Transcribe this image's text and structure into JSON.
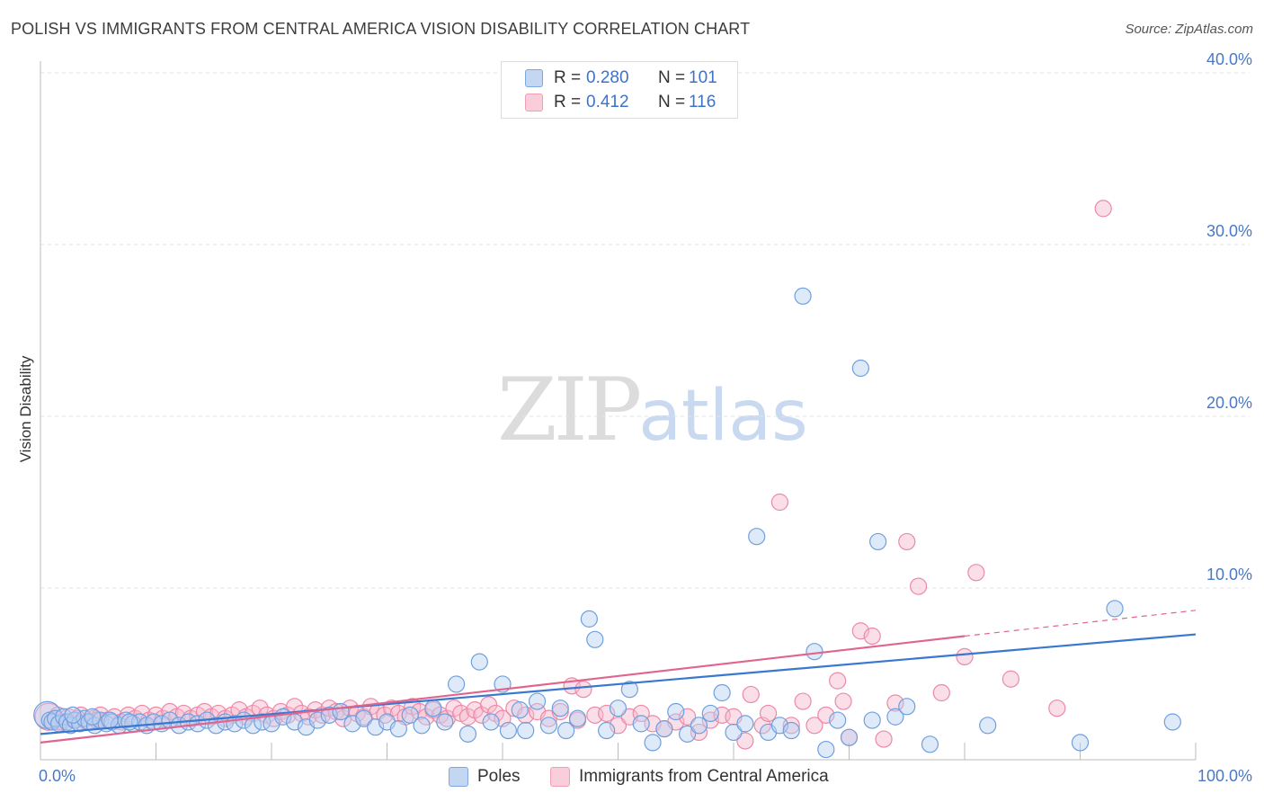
{
  "title": "POLISH VS IMMIGRANTS FROM CENTRAL AMERICA VISION DISABILITY CORRELATION CHART",
  "source": "Source: ZipAtlas.com",
  "watermark": {
    "zip": "ZIP",
    "atlas": "atlas"
  },
  "colors": {
    "poles": "#6f9fe0",
    "immigrants": "#ee8fac",
    "poles_line": "#3a78d0",
    "immigrants_line": "#e0648e"
  },
  "legend": {
    "poles": {
      "r_label": "R = ",
      "r_value": "0.280",
      "n_label": "N = ",
      "n_value": "101"
    },
    "immigrants": {
      "r_label": "R = ",
      "r_value": "0.412",
      "n_label": "N = ",
      "n_value": "116"
    }
  },
  "bottom_legend": {
    "poles": "Poles",
    "immigrants": "Immigrants from Central America"
  },
  "chart_data": {
    "type": "scatter",
    "title": "POLISH VS IMMIGRANTS FROM CENTRAL AMERICA VISION DISABILITY CORRELATION CHART",
    "xlabel": "",
    "ylabel": "Vision Disability",
    "xlim": [
      0,
      100
    ],
    "ylim": [
      0,
      40
    ],
    "y_ticks": [
      10,
      20,
      30,
      40
    ],
    "y_tick_labels": [
      "10.0%",
      "20.0%",
      "30.0%",
      "40.0%"
    ],
    "x_tick_labels": [
      "0.0%",
      "100.0%"
    ],
    "grid": true,
    "legend_position": "top-center",
    "series": [
      {
        "name": "Poles",
        "points": [
          [
            0.6,
            2.6
          ],
          [
            0.8,
            2.3
          ],
          [
            1.0,
            2.2
          ],
          [
            1.3,
            2.4
          ],
          [
            1.6,
            2.1
          ],
          [
            2.0,
            2.5
          ],
          [
            2.3,
            2.2
          ],
          [
            2.6,
            2.0
          ],
          [
            3.0,
            2.3
          ],
          [
            3.4,
            2.1
          ],
          [
            3.8,
            2.4
          ],
          [
            4.2,
            2.2
          ],
          [
            4.7,
            2.0
          ],
          [
            5.2,
            2.3
          ],
          [
            5.7,
            2.1
          ],
          [
            6.2,
            2.2
          ],
          [
            6.8,
            2.0
          ],
          [
            7.4,
            2.3
          ],
          [
            8.0,
            2.1
          ],
          [
            8.6,
            2.2
          ],
          [
            9.2,
            2.0
          ],
          [
            9.8,
            2.2
          ],
          [
            10.5,
            2.1
          ],
          [
            11.2,
            2.3
          ],
          [
            12.0,
            2.0
          ],
          [
            12.8,
            2.2
          ],
          [
            13.6,
            2.1
          ],
          [
            14.4,
            2.3
          ],
          [
            15.2,
            2.0
          ],
          [
            16.0,
            2.2
          ],
          [
            16.8,
            2.1
          ],
          [
            17.6,
            2.3
          ],
          [
            18.4,
            2.0
          ],
          [
            19.2,
            2.2
          ],
          [
            20.0,
            2.1
          ],
          [
            21.0,
            2.5
          ],
          [
            22.0,
            2.2
          ],
          [
            23.0,
            1.9
          ],
          [
            24.0,
            2.3
          ],
          [
            25.0,
            2.6
          ],
          [
            26.0,
            2.8
          ],
          [
            27.0,
            2.1
          ],
          [
            28.0,
            2.4
          ],
          [
            29.0,
            1.9
          ],
          [
            30.0,
            2.2
          ],
          [
            31.0,
            1.8
          ],
          [
            32.0,
            2.6
          ],
          [
            33.0,
            2.0
          ],
          [
            34.0,
            3.0
          ],
          [
            35.0,
            2.2
          ],
          [
            36.0,
            4.4
          ],
          [
            37.0,
            1.5
          ],
          [
            38.0,
            5.7
          ],
          [
            39.0,
            2.2
          ],
          [
            40.0,
            4.4
          ],
          [
            40.5,
            1.7
          ],
          [
            41.5,
            2.9
          ],
          [
            42.0,
            1.7
          ],
          [
            43.0,
            3.4
          ],
          [
            44.0,
            2.0
          ],
          [
            45.0,
            3.0
          ],
          [
            45.5,
            1.7
          ],
          [
            46.5,
            2.4
          ],
          [
            47.5,
            8.2
          ],
          [
            48.0,
            7.0
          ],
          [
            49.0,
            1.7
          ],
          [
            50.0,
            3.0
          ],
          [
            51.0,
            4.1
          ],
          [
            52.0,
            2.1
          ],
          [
            53.0,
            1.0
          ],
          [
            54.0,
            1.8
          ],
          [
            55.0,
            2.8
          ],
          [
            56.0,
            1.5
          ],
          [
            57.0,
            2.0
          ],
          [
            58.0,
            2.7
          ],
          [
            59.0,
            3.9
          ],
          [
            60.0,
            1.6
          ],
          [
            61.0,
            2.1
          ],
          [
            62.0,
            13.0
          ],
          [
            63.0,
            1.6
          ],
          [
            64.0,
            2.0
          ],
          [
            65.0,
            1.7
          ],
          [
            66.0,
            27.0
          ],
          [
            67.0,
            6.3
          ],
          [
            68.0,
            0.6
          ],
          [
            69.0,
            2.3
          ],
          [
            70.0,
            1.3
          ],
          [
            71.0,
            22.8
          ],
          [
            72.0,
            2.3
          ],
          [
            72.5,
            12.7
          ],
          [
            74.0,
            2.5
          ],
          [
            75.0,
            3.1
          ],
          [
            77.0,
            0.9
          ],
          [
            82.0,
            2.0
          ],
          [
            90.0,
            1.0
          ],
          [
            93.0,
            8.8
          ],
          [
            98.0,
            2.2
          ],
          [
            2.8,
            2.6
          ],
          [
            4.5,
            2.5
          ],
          [
            6.0,
            2.3
          ],
          [
            7.7,
            2.2
          ]
        ],
        "trend": {
          "x": [
            0,
            100
          ],
          "y": [
            1.5,
            7.3
          ]
        }
      },
      {
        "name": "Immigrants from Central America",
        "points": [
          [
            0.7,
            2.5
          ],
          [
            1.1,
            2.3
          ],
          [
            1.5,
            2.6
          ],
          [
            1.9,
            2.2
          ],
          [
            2.4,
            2.5
          ],
          [
            2.9,
            2.3
          ],
          [
            3.5,
            2.6
          ],
          [
            4.0,
            2.2
          ],
          [
            4.6,
            2.4
          ],
          [
            5.2,
            2.6
          ],
          [
            5.8,
            2.3
          ],
          [
            6.4,
            2.5
          ],
          [
            7.0,
            2.2
          ],
          [
            7.6,
            2.6
          ],
          [
            8.2,
            2.4
          ],
          [
            8.8,
            2.7
          ],
          [
            9.4,
            2.3
          ],
          [
            10.0,
            2.6
          ],
          [
            10.6,
            2.4
          ],
          [
            11.2,
            2.8
          ],
          [
            11.8,
            2.5
          ],
          [
            12.4,
            2.7
          ],
          [
            13.0,
            2.4
          ],
          [
            13.6,
            2.6
          ],
          [
            14.2,
            2.8
          ],
          [
            14.8,
            2.5
          ],
          [
            15.4,
            2.7
          ],
          [
            16.0,
            2.4
          ],
          [
            16.6,
            2.6
          ],
          [
            17.2,
            2.9
          ],
          [
            17.8,
            2.5
          ],
          [
            18.4,
            2.7
          ],
          [
            19.0,
            3.0
          ],
          [
            19.6,
            2.6
          ],
          [
            20.2,
            2.4
          ],
          [
            20.8,
            2.8
          ],
          [
            21.4,
            2.6
          ],
          [
            22.0,
            3.1
          ],
          [
            22.6,
            2.7
          ],
          [
            23.2,
            2.5
          ],
          [
            23.8,
            2.9
          ],
          [
            24.4,
            2.6
          ],
          [
            25.0,
            3.0
          ],
          [
            25.6,
            2.8
          ],
          [
            26.2,
            2.4
          ],
          [
            26.8,
            3.0
          ],
          [
            27.4,
            2.7
          ],
          [
            28.0,
            2.5
          ],
          [
            28.6,
            3.1
          ],
          [
            29.2,
            2.8
          ],
          [
            29.8,
            2.6
          ],
          [
            30.4,
            3.0
          ],
          [
            31.0,
            2.7
          ],
          [
            31.6,
            2.5
          ],
          [
            32.2,
            3.1
          ],
          [
            32.8,
            2.8
          ],
          [
            33.4,
            2.5
          ],
          [
            34.0,
            2.9
          ],
          [
            34.6,
            2.6
          ],
          [
            35.2,
            2.4
          ],
          [
            35.8,
            3.0
          ],
          [
            36.4,
            2.7
          ],
          [
            37.0,
            2.5
          ],
          [
            37.6,
            2.9
          ],
          [
            38.2,
            2.6
          ],
          [
            38.8,
            3.2
          ],
          [
            39.4,
            2.7
          ],
          [
            40.0,
            2.4
          ],
          [
            41.0,
            3.0
          ],
          [
            42.0,
            2.6
          ],
          [
            43.0,
            2.8
          ],
          [
            44.0,
            2.4
          ],
          [
            45.0,
            2.8
          ],
          [
            46.0,
            4.3
          ],
          [
            46.5,
            2.3
          ],
          [
            47.0,
            4.1
          ],
          [
            48.0,
            2.6
          ],
          [
            49.0,
            2.7
          ],
          [
            50.0,
            2.0
          ],
          [
            51.0,
            2.5
          ],
          [
            52.0,
            2.7
          ],
          [
            53.0,
            2.1
          ],
          [
            54.0,
            1.8
          ],
          [
            55.0,
            2.2
          ],
          [
            56.0,
            2.5
          ],
          [
            57.0,
            1.6
          ],
          [
            58.0,
            2.3
          ],
          [
            59.0,
            2.6
          ],
          [
            60.0,
            2.5
          ],
          [
            61.0,
            1.1
          ],
          [
            61.5,
            3.8
          ],
          [
            62.5,
            2.0
          ],
          [
            63.0,
            2.7
          ],
          [
            64.0,
            15.0
          ],
          [
            65.0,
            2.0
          ],
          [
            66.0,
            3.4
          ],
          [
            67.0,
            2.0
          ],
          [
            68.0,
            2.6
          ],
          [
            69.0,
            4.6
          ],
          [
            69.5,
            3.4
          ],
          [
            70.0,
            1.3
          ],
          [
            71.0,
            7.5
          ],
          [
            72.0,
            7.2
          ],
          [
            73.0,
            1.2
          ],
          [
            74.0,
            3.3
          ],
          [
            75.0,
            12.7
          ],
          [
            76.0,
            10.1
          ],
          [
            78.0,
            3.9
          ],
          [
            80.0,
            6.0
          ],
          [
            81.0,
            10.9
          ],
          [
            84.0,
            4.7
          ],
          [
            88.0,
            3.0
          ],
          [
            92.0,
            32.1
          ],
          [
            1.6,
            2.2
          ],
          [
            3.2,
            2.4
          ],
          [
            4.9,
            2.3
          ]
        ],
        "trend": {
          "x": [
            0,
            80
          ],
          "y": [
            1.0,
            7.2
          ],
          "dashed_extension": {
            "x": [
              80,
              100
            ],
            "y": [
              7.2,
              8.7
            ]
          }
        }
      }
    ]
  }
}
